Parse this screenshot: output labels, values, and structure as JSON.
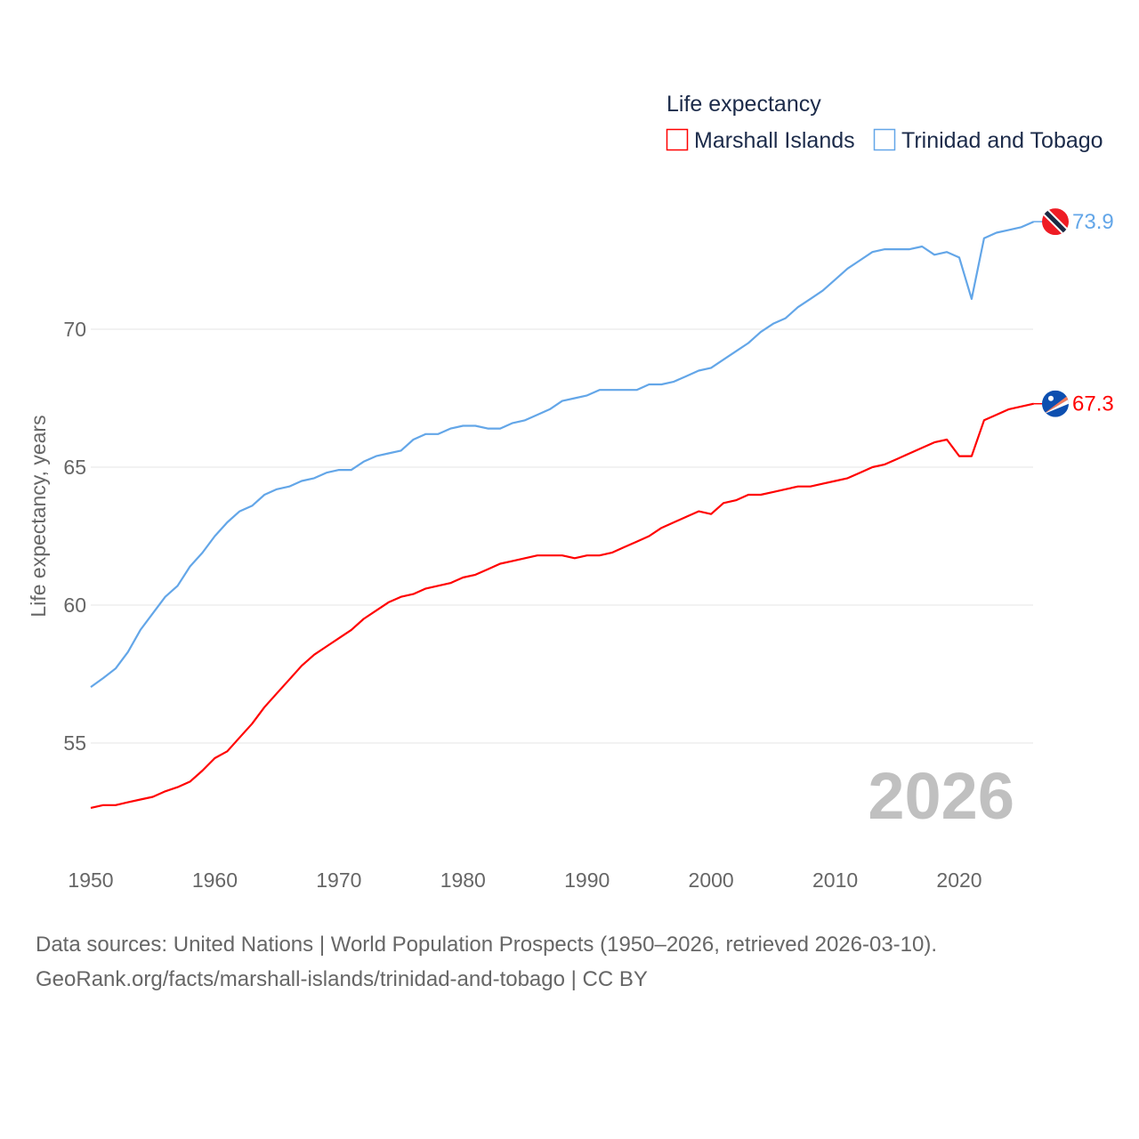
{
  "chart_data": {
    "type": "line",
    "title": "Life expectancy",
    "ylabel": "Life expectancy, years",
    "xlabel": "",
    "xlim": [
      1950,
      2026
    ],
    "ylim": [
      51.9,
      75.5
    ],
    "xticks": [
      1950,
      1960,
      1970,
      1980,
      1990,
      2000,
      2010,
      2020
    ],
    "yticks": [
      55,
      60,
      65,
      70
    ],
    "grid": true,
    "legend_position": "top-right",
    "year_label": "2026",
    "x": [
      1950,
      1951,
      1952,
      1953,
      1954,
      1955,
      1956,
      1957,
      1958,
      1959,
      1960,
      1961,
      1962,
      1963,
      1964,
      1965,
      1966,
      1967,
      1968,
      1969,
      1970,
      1971,
      1972,
      1973,
      1974,
      1975,
      1976,
      1977,
      1978,
      1979,
      1980,
      1981,
      1982,
      1983,
      1984,
      1985,
      1986,
      1987,
      1988,
      1989,
      1990,
      1991,
      1992,
      1993,
      1994,
      1995,
      1996,
      1997,
      1998,
      1999,
      2000,
      2001,
      2002,
      2003,
      2004,
      2005,
      2006,
      2007,
      2008,
      2009,
      2010,
      2011,
      2012,
      2013,
      2014,
      2015,
      2016,
      2017,
      2018,
      2019,
      2020,
      2021,
      2022,
      2023,
      2024,
      2025,
      2026
    ],
    "series": [
      {
        "name": "Marshall Islands",
        "color": "#ff0000",
        "end_label": "67.3",
        "flag": "marshall-islands-flag",
        "values": [
          52.65,
          52.75,
          52.75,
          52.85,
          52.95,
          53.05,
          53.25,
          53.4,
          53.6,
          54.0,
          54.45,
          54.7,
          55.2,
          55.7,
          56.3,
          56.8,
          57.3,
          57.8,
          58.2,
          58.5,
          58.8,
          59.1,
          59.5,
          59.8,
          60.1,
          60.3,
          60.4,
          60.6,
          60.7,
          60.8,
          61.0,
          61.1,
          61.3,
          61.5,
          61.6,
          61.7,
          61.8,
          61.8,
          61.8,
          61.7,
          61.8,
          61.8,
          61.9,
          62.1,
          62.3,
          62.5,
          62.8,
          63.0,
          63.2,
          63.4,
          63.3,
          63.7,
          63.8,
          64.0,
          64.0,
          64.1,
          64.2,
          64.3,
          64.3,
          64.4,
          64.5,
          64.6,
          64.8,
          65.0,
          65.1,
          65.3,
          65.5,
          65.7,
          65.9,
          66.0,
          65.4,
          65.4,
          66.7,
          66.9,
          67.1,
          67.2,
          67.3
        ]
      },
      {
        "name": "Trinidad and Tobago",
        "color": "#63a6e8",
        "end_label": "73.9",
        "flag": "trinidad-and-tobago-flag",
        "values": [
          57.03,
          57.35,
          57.7,
          58.3,
          59.1,
          59.7,
          60.3,
          60.7,
          61.4,
          61.9,
          62.5,
          63.0,
          63.4,
          63.6,
          64.0,
          64.2,
          64.3,
          64.5,
          64.6,
          64.8,
          64.9,
          64.9,
          65.2,
          65.4,
          65.5,
          65.6,
          66.0,
          66.2,
          66.2,
          66.4,
          66.5,
          66.5,
          66.4,
          66.4,
          66.6,
          66.7,
          66.9,
          67.1,
          67.4,
          67.5,
          67.6,
          67.8,
          67.8,
          67.8,
          67.8,
          68.0,
          68.0,
          68.1,
          68.3,
          68.5,
          68.6,
          68.9,
          69.2,
          69.5,
          69.9,
          70.2,
          70.4,
          70.8,
          71.1,
          71.4,
          71.8,
          72.2,
          72.5,
          72.8,
          72.9,
          72.9,
          72.9,
          73.0,
          72.7,
          72.8,
          72.6,
          71.1,
          73.3,
          73.5,
          73.6,
          73.7,
          73.9
        ]
      }
    ]
  },
  "footer": {
    "line1": "Data sources: United Nations | World Population Prospects (1950–2026, retrieved 2026-03-10).",
    "line2": "GeoRank.org/facts/marshall-islands/trinidad-and-tobago | CC BY"
  }
}
